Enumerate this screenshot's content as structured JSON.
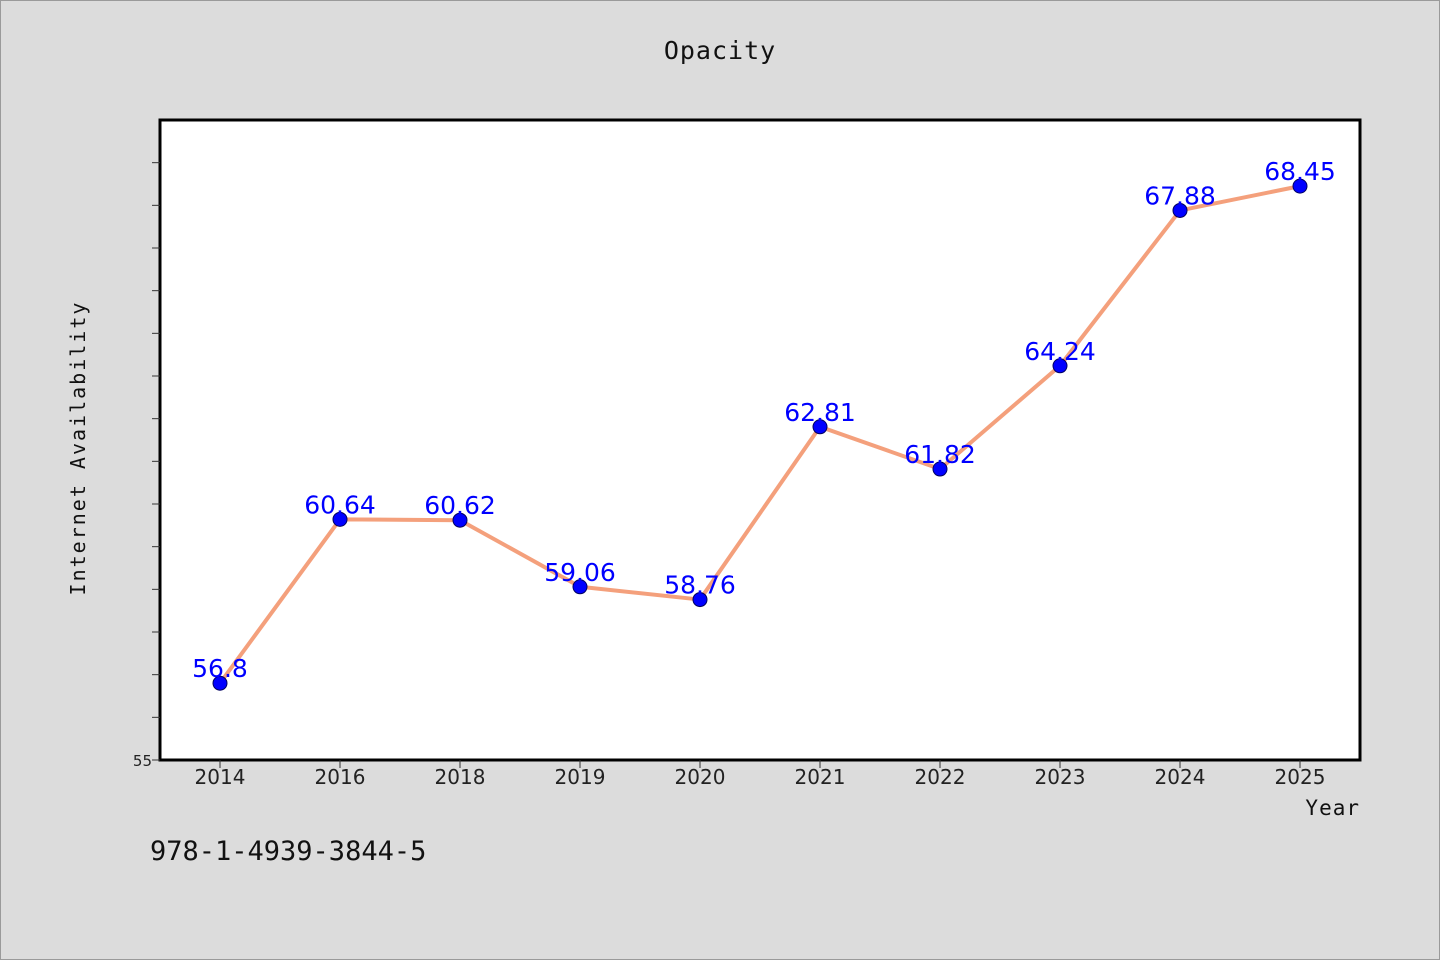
{
  "figure": {
    "footer_text": "978-1-4939-3844-5"
  },
  "chart_data": {
    "type": "line",
    "title": "Opacity",
    "xlabel": "Year",
    "ylabel": "Internet Availability",
    "categories": [
      "2014",
      "2016",
      "2018",
      "2019",
      "2020",
      "2021",
      "2022",
      "2023",
      "2024",
      "2025"
    ],
    "series": [
      {
        "values": [
          56.8,
          60.64,
          60.62,
          59.06,
          58.76,
          62.81,
          61.82,
          64.24,
          67.88,
          68.45
        ],
        "data_labels": [
          "56.8",
          "60.64",
          "60.62",
          "59.06",
          "58.76",
          "62.81",
          "61.82",
          "64.24",
          "67.88",
          "68.45"
        ]
      }
    ],
    "ylim": [
      55,
      70
    ],
    "y_tick_step": 1,
    "y_tick_labels": [
      "55"
    ],
    "grid": false,
    "legend": "none",
    "colors": {
      "line": "#f4a07c",
      "marker": "#0000ff",
      "data_label": "#0000ff",
      "plot_background": "#ffffff",
      "figure_background": "#dcdcdc"
    }
  }
}
